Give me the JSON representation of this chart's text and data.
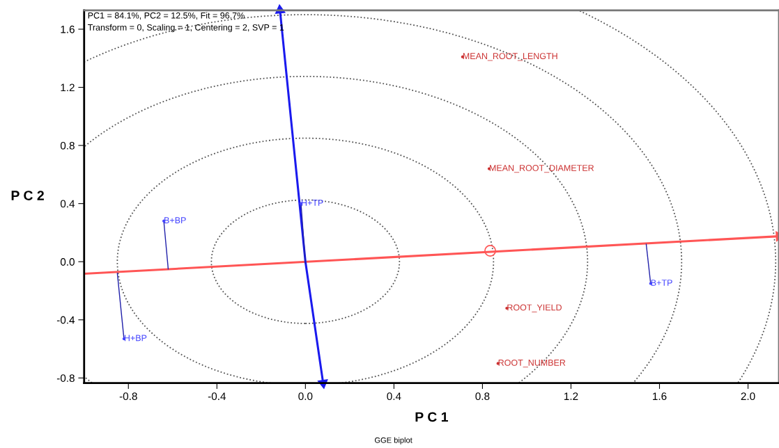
{
  "chart_data": {
    "type": "scatter",
    "xlabel": "P C 1",
    "ylabel": "P C 2",
    "xlim": [
      -1.0,
      2.14
    ],
    "ylim": [
      -0.835,
      1.73
    ],
    "xticks": [
      -0.8,
      -0.4,
      {
        "value": 0,
        "label": "0.0"
      },
      0.4,
      0.8,
      1.2,
      1.6,
      {
        "value": 2,
        "label": "2.0"
      }
    ],
    "yticks": [
      -0.8,
      -0.4,
      {
        "value": 0,
        "label": "0.0"
      },
      0.4,
      0.8,
      1.2,
      1.6
    ],
    "grid": false,
    "legend": false,
    "annotations": [
      "PC1 = 84.1%, PC2 = 12.5%, Fit = 96.7%",
      "Transform = 0, Scaling = 1, Centering = 2, SVP = 1",
      "GGE biplot"
    ],
    "series": [
      {
        "type": "line",
        "line_style": "solid",
        "color": "#ff5555",
        "marker": "triangle",
        "x": [
          -1.0,
          2.14
        ],
        "values": [
          -0.083,
          0.175
        ]
      },
      {
        "type": "line",
        "line_style": "solid",
        "color": "#1a1aee",
        "marker": "triangle",
        "x": [
          0.08,
          0.0,
          -0.115
        ],
        "values": [
          -0.835,
          0.0,
          1.73
        ]
      },
      {
        "type": "line",
        "line_style": "solid",
        "color": "#2020aa",
        "x": [
          -0.64,
          -0.62
        ],
        "values": [
          0.28,
          -0.05
        ]
      },
      {
        "type": "line",
        "line_style": "solid",
        "color": "#2020aa",
        "x": [
          -0.02,
          0.0
        ],
        "values": [
          0.4,
          -0.01
        ]
      },
      {
        "type": "line",
        "line_style": "solid",
        "color": "#2020aa",
        "x": [
          -0.85,
          -0.82
        ],
        "values": [
          -0.08,
          -0.53
        ]
      },
      {
        "type": "line",
        "line_style": "solid",
        "color": "#2020aa",
        "x": [
          1.54,
          1.56
        ],
        "values": [
          0.12,
          -0.15
        ]
      },
      {
        "marker": "circle",
        "color": "#ff5555",
        "x": [
          0.835
        ],
        "values": [
          0.075
        ]
      },
      {
        "marker": "circle",
        "color": "#4444ff",
        "x": [
          -0.64,
          -0.02,
          -0.82,
          1.56
        ],
        "values": [
          0.28,
          0.4,
          -0.53,
          -0.15
        ],
        "value_labels": [
          "B+BP",
          "H+TP",
          "H+BP",
          "B+TP"
        ]
      },
      {
        "marker": "circle",
        "color": "#cc3333",
        "x": [
          0.71,
          0.83,
          0.91,
          0.87
        ],
        "values": [
          1.41,
          0.64,
          -0.32,
          -0.7
        ],
        "value_labels": [
          "MEAN_ROOT_LENGTH",
          "MEAN_ROOT_DIAMETER",
          "ROOT_YIELD",
          "ROOT_NUMBER"
        ]
      }
    ]
  }
}
